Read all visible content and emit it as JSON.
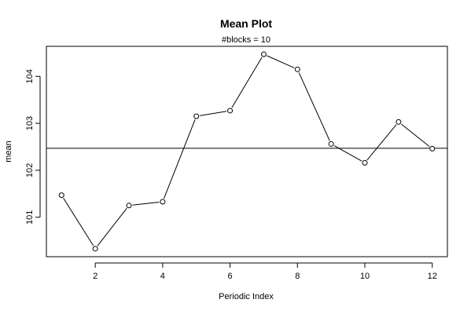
{
  "chart_data": {
    "type": "line",
    "title": "Mean Plot",
    "subtitle": "#blocks =  10",
    "xlabel": "Periodic Index",
    "ylabel": "mean",
    "xlim": [
      0.55,
      12.45
    ],
    "ylim": [
      100.16,
      104.64
    ],
    "x_ticks": [
      2,
      4,
      6,
      8,
      10,
      12
    ],
    "y_ticks": [
      101,
      102,
      103,
      104
    ],
    "grid": false,
    "x": [
      1,
      2,
      3,
      4,
      5,
      6,
      7,
      8,
      9,
      10,
      11,
      12
    ],
    "values": [
      101.47,
      100.33,
      101.25,
      101.33,
      103.15,
      103.27,
      104.47,
      104.15,
      102.56,
      102.16,
      103.03,
      102.46
    ],
    "reference_line": 102.47,
    "markers": "open-circle"
  }
}
